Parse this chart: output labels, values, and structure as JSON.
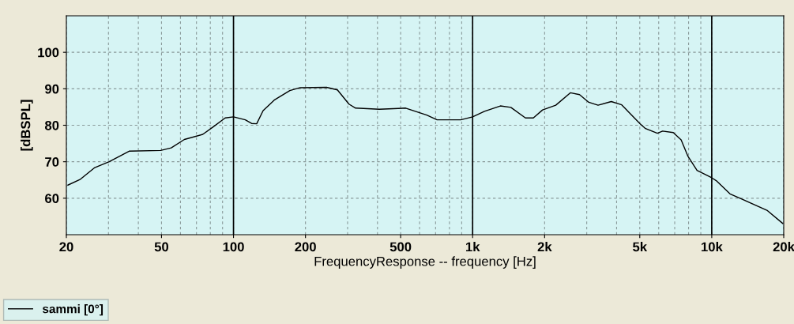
{
  "chart_data": {
    "type": "line",
    "xlabel": "FrequencyResponse -- frequency [Hz]",
    "ylabel": "[dBSPL]",
    "log": "x",
    "grid": true,
    "legend": "bottom",
    "marker": "none",
    "line_style": "solid",
    "xlim": [
      20,
      20000
    ],
    "xticks": [
      20,
      50,
      100,
      200,
      500,
      {
        "value": 1000,
        "label": "1k"
      },
      {
        "value": 2000,
        "label": "2k"
      },
      {
        "value": 5000,
        "label": "5k"
      },
      {
        "value": 10000,
        "label": "10k"
      },
      {
        "value": 20000,
        "label": "20k"
      }
    ],
    "ylim": [
      50,
      110
    ],
    "yticks": [
      60,
      70,
      80,
      90,
      100
    ],
    "series": [
      {
        "name": "sammi [0°]",
        "color": "#000000",
        "x": [
          20.3,
          22.9,
          26.3,
          30.2,
          36.6,
          49.6,
          54.9,
          62.3,
          74.4,
          82.4,
          92.3,
          100,
          112,
          119,
          125,
          133,
          148,
          172,
          190,
          245,
          272,
          304,
          324,
          407,
          525,
          643,
          710,
          892,
          1000,
          1121,
          1306,
          1445,
          1663,
          1794,
          1961,
          2227,
          2562,
          2800,
          3060,
          3345,
          3800,
          4203,
          5020,
          5284,
          5925,
          6232,
          6903,
          7447,
          7938,
          8679,
          10000,
          10500,
          11920,
          13530,
          17010,
          19800
        ],
        "values": [
          63.6,
          65.2,
          68.4,
          70.0,
          72.9,
          73.1,
          73.8,
          76.1,
          77.5,
          79.6,
          82.0,
          82.3,
          81.5,
          80.5,
          80.4,
          84.0,
          86.9,
          89.5,
          90.3,
          90.4,
          89.7,
          85.8,
          84.7,
          84.4,
          84.7,
          82.8,
          81.5,
          81.5,
          82.3,
          83.8,
          85.3,
          84.9,
          82.0,
          82.0,
          84.2,
          85.5,
          88.9,
          88.4,
          86.3,
          85.5,
          86.5,
          85.6,
          80.4,
          79.1,
          77.8,
          78.4,
          78.0,
          76.0,
          71.6,
          67.6,
          65.6,
          64.7,
          61.2,
          59.6,
          56.7,
          53.1
        ]
      }
    ]
  }
}
